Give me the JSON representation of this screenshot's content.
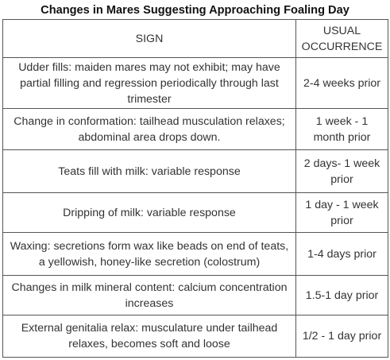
{
  "title": "Changes in Mares Suggesting Approaching Foaling Day",
  "table": {
    "headers": {
      "sign": "SIGN",
      "occurrence": "USUAL OCCURRENCE"
    },
    "rows": [
      {
        "sign": "Udder fills: maiden mares may not exhibit; may have partial filling and regression periodically through last trimester",
        "occurrence": "2-4 weeks prior"
      },
      {
        "sign": "Change in conformation: tailhead musculation relaxes; abdominal area drops down.",
        "occurrence": "1 week - 1 month prior"
      },
      {
        "sign": "Teats fill with milk: variable response",
        "occurrence": "2 days- 1 week prior"
      },
      {
        "sign": "Dripping of milk: variable response",
        "occurrence": "1 day - 1 week prior"
      },
      {
        "sign": "Waxing: secretions form wax like beads on end of teats, a yellowish, honey-like secretion (colostrum)",
        "occurrence": "1-4 days prior"
      },
      {
        "sign": "Changes in milk mineral content: calcium concentration increases",
        "occurrence": "1.5-1 day prior"
      },
      {
        "sign": "External genitalia relax: musculature under tailhead relaxes, becomes soft and loose",
        "occurrence": "1/2 - 1 day prior"
      }
    ]
  }
}
